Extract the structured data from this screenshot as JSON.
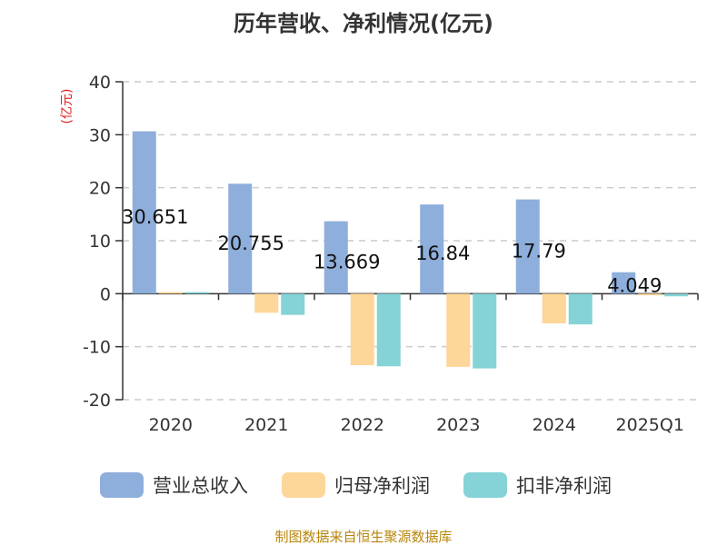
{
  "chart_data": {
    "type": "bar",
    "title": "历年营收、净利情况(亿元)",
    "ylabel": "(亿元)",
    "xlabel": "",
    "categories": [
      "2020",
      "2021",
      "2022",
      "2023",
      "2024",
      "2025Q1"
    ],
    "ylim": [
      -20,
      40
    ],
    "yticks": [
      40,
      30,
      20,
      10,
      0,
      -10,
      -20
    ],
    "grid": true,
    "legend_position": "bottom",
    "series": [
      {
        "name": "营业总收入",
        "color": "#8eaedb",
        "values": [
          30.651,
          20.755,
          13.669,
          16.84,
          17.79,
          4.049
        ],
        "labels": [
          "30.651",
          "20.755",
          "13.669",
          "16.84",
          "17.79",
          "4.049"
        ]
      },
      {
        "name": "归母净利润",
        "color": "#fdd699",
        "values": [
          0.3,
          -3.6,
          -13.5,
          -13.8,
          -5.6,
          -0.3
        ]
      },
      {
        "name": "扣非净利润",
        "color": "#85d3d6",
        "values": [
          0.3,
          -4.0,
          -13.7,
          -14.1,
          -5.8,
          -0.5
        ]
      }
    ],
    "source": "制图数据来自恒生聚源数据库"
  }
}
